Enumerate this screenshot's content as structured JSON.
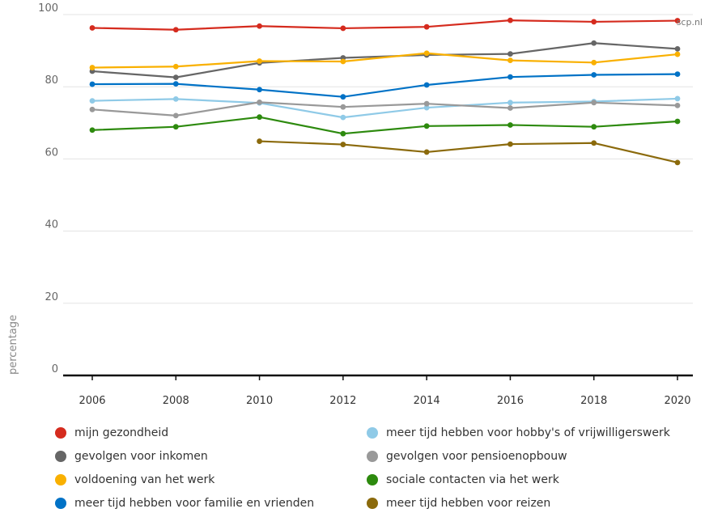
{
  "source_label": "scp.nl",
  "chart_data": {
    "type": "line",
    "ylabel": "percentage",
    "xlabel": "",
    "ylim": [
      0,
      100
    ],
    "yticks": [
      0,
      20,
      40,
      60,
      80,
      100
    ],
    "x": [
      2006,
      2008,
      2010,
      2012,
      2014,
      2016,
      2018,
      2020
    ],
    "grid": true,
    "legend_position": "bottom",
    "series": [
      {
        "name": "mijn gezondheid",
        "color": "#d52b1e",
        "values": [
          96.3,
          95.8,
          96.8,
          96.2,
          96.6,
          98.4,
          98.0,
          98.3
        ]
      },
      {
        "name": "gevolgen voor inkomen",
        "color": "#666666",
        "values": [
          84.3,
          82.6,
          86.6,
          88.0,
          88.8,
          89.1,
          92.1,
          90.5
        ]
      },
      {
        "name": "voldoening van het werk",
        "color": "#f9b000",
        "values": [
          85.3,
          85.6,
          87.1,
          87.0,
          89.3,
          87.3,
          86.7,
          89.0
        ]
      },
      {
        "name": "meer tijd hebben voor familie en vrienden",
        "color": "#0072c6",
        "values": [
          80.7,
          80.8,
          79.2,
          77.2,
          80.5,
          82.7,
          83.3,
          83.5
        ]
      },
      {
        "name": "meer tijd hebben voor hobby's of vrijwilligerswerk",
        "color": "#8fcae7",
        "values": [
          76.1,
          76.6,
          75.5,
          71.5,
          74.2,
          75.6,
          75.9,
          76.7
        ]
      },
      {
        "name": "gevolgen voor pensioenopbouw",
        "color": "#999999",
        "values": [
          73.7,
          72.0,
          75.7,
          74.4,
          75.3,
          74.1,
          75.6,
          74.8
        ]
      },
      {
        "name": "sociale contacten via het werk",
        "color": "#2d8a0e",
        "values": [
          68.0,
          68.9,
          71.6,
          67.0,
          69.1,
          69.4,
          68.9,
          70.4
        ]
      },
      {
        "name": "meer tijd hebben voor reizen",
        "color": "#8b6a0c",
        "values": [
          null,
          null,
          64.9,
          64.0,
          61.9,
          64.1,
          64.4,
          59.0
        ]
      }
    ],
    "legend_order": [
      "mijn gezondheid",
      "meer tijd hebben voor hobby's of vrijwilligerswerk",
      "gevolgen voor inkomen",
      "gevolgen voor pensioenopbouw",
      "voldoening van het werk",
      "sociale contacten via het werk",
      "meer tijd hebben voor familie en vrienden",
      "meer tijd hebben voor reizen"
    ]
  }
}
